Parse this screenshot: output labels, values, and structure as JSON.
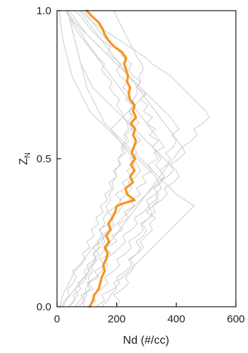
{
  "chart_data": {
    "type": "line",
    "xlabel": "Nd (#/cc)",
    "ylabel": "Z",
    "ylabel_subscript": "N",
    "xlim": [
      0,
      600
    ],
    "ylim": [
      0.0,
      1.0
    ],
    "x_ticks": [
      0,
      200,
      400,
      600
    ],
    "x_tick_labels": [
      "0",
      "200",
      "400",
      "600"
    ],
    "y_ticks": [
      0.0,
      0.5,
      1.0
    ],
    "y_tick_labels": [
      "0.0",
      "0.5",
      "1.0"
    ],
    "grid": false,
    "legend": "none",
    "series": [
      {
        "role": "mean",
        "color": "#f7941d",
        "y": [
          0.0,
          0.02,
          0.04,
          0.06,
          0.08,
          0.1,
          0.12,
          0.14,
          0.16,
          0.18,
          0.2,
          0.22,
          0.24,
          0.26,
          0.28,
          0.3,
          0.32,
          0.34,
          0.35,
          0.36,
          0.38,
          0.4,
          0.42,
          0.44,
          0.46,
          0.48,
          0.5,
          0.52,
          0.54,
          0.56,
          0.58,
          0.6,
          0.62,
          0.64,
          0.66,
          0.68,
          0.7,
          0.72,
          0.74,
          0.76,
          0.78,
          0.8,
          0.82,
          0.84,
          0.86,
          0.88,
          0.9,
          0.92,
          0.94,
          0.96,
          0.98,
          1.0
        ],
        "x": [
          110,
          120,
          125,
          140,
          145,
          150,
          160,
          155,
          165,
          170,
          160,
          175,
          165,
          180,
          172,
          185,
          195,
          200,
          225,
          260,
          235,
          230,
          255,
          245,
          260,
          248,
          262,
          250,
          258,
          265,
          255,
          262,
          248,
          265,
          255,
          260,
          245,
          240,
          245,
          235,
          238,
          232,
          225,
          232,
          218,
          190,
          172,
          160,
          152,
          140,
          118,
          100
        ]
      }
    ],
    "background_series": [
      {
        "color": "#cccccc",
        "y_step": 0.02,
        "x": [
          40,
          60,
          55,
          80,
          70,
          95,
          110,
          100,
          125,
          140,
          120,
          150,
          160,
          140,
          175,
          190,
          170,
          200,
          215,
          195,
          230,
          220,
          250,
          235,
          260,
          245,
          270,
          255,
          280,
          265,
          250,
          275,
          260,
          240,
          255,
          230,
          245,
          220,
          235,
          210,
          200,
          215,
          190,
          170,
          180,
          150,
          130,
          110,
          95,
          80,
          60
        ]
      },
      {
        "color": "#cccccc",
        "y_step": 0.02,
        "x": [
          15,
          25,
          40,
          35,
          55,
          65,
          50,
          80,
          95,
          85,
          110,
          100,
          125,
          115,
          140,
          130,
          155,
          145,
          170,
          160,
          185,
          175,
          200,
          190,
          215,
          205,
          230,
          220,
          240,
          230,
          250,
          240,
          225,
          215,
          200,
          210,
          190,
          175,
          185,
          165,
          150,
          160,
          140,
          125,
          110,
          95,
          85,
          70,
          55,
          45,
          30
        ]
      },
      {
        "color": "#cccccc",
        "y_step": 0.02,
        "x": [
          130,
          160,
          150,
          190,
          210,
          200,
          230,
          250,
          240,
          270,
          290,
          280,
          300,
          320,
          310,
          330,
          300,
          320,
          340,
          330,
          350,
          340,
          360,
          345,
          330,
          350,
          335,
          320,
          340,
          310,
          330,
          300,
          320,
          290,
          305,
          280,
          295,
          270,
          280,
          255,
          240,
          250,
          225,
          210,
          190,
          170,
          150,
          135,
          120,
          105,
          90
        ]
      },
      {
        "color": "#cccccc",
        "y_step": 0.02,
        "x": [
          60,
          75,
          90,
          110,
          100,
          130,
          150,
          170,
          160,
          190,
          210,
          230,
          220,
          250,
          270,
          260,
          290,
          310,
          300,
          330,
          350,
          340,
          370,
          390,
          380,
          410,
          430,
          420,
          450,
          470,
          460,
          490,
          510,
          500,
          480,
          460,
          440,
          420,
          400,
          380,
          350,
          320,
          300,
          270,
          240,
          210,
          180,
          150,
          120,
          100,
          80
        ]
      },
      {
        "color": "#cccccc",
        "y_step": 0.02,
        "x": [
          20,
          30,
          45,
          60,
          75,
          90,
          105,
          120,
          135,
          150,
          165,
          180,
          195,
          210,
          225,
          240,
          255,
          270,
          285,
          300,
          315,
          330,
          345,
          360,
          375,
          390,
          405,
          420,
          405,
          390,
          375,
          360,
          345,
          330,
          315,
          300,
          285,
          270,
          255,
          240,
          225,
          210,
          195,
          180,
          165,
          150,
          135,
          120,
          105,
          90,
          75
        ]
      },
      {
        "color": "#cccccc",
        "y_step": 0.02,
        "x": [
          200,
          210,
          190,
          220,
          240,
          230,
          250,
          260,
          245,
          270,
          280,
          265,
          290,
          300,
          285,
          310,
          320,
          305,
          330,
          340,
          325,
          350,
          360,
          345,
          370,
          380,
          365,
          390,
          400,
          385,
          410,
          395,
          380,
          360,
          340,
          320,
          300,
          280,
          260,
          240,
          220,
          200,
          180,
          160,
          140,
          120,
          100,
          85,
          70,
          55,
          40
        ]
      },
      {
        "color": "#cccccc",
        "y_step": 0.02,
        "x": [
          90,
          85,
          100,
          95,
          110,
          105,
          120,
          115,
          130,
          125,
          140,
          135,
          150,
          145,
          160,
          155,
          170,
          165,
          180,
          175,
          190,
          185,
          200,
          195,
          210,
          205,
          220,
          215,
          230,
          225,
          240,
          235,
          250,
          245,
          260,
          255,
          270,
          265,
          280,
          275,
          290,
          285,
          270,
          260,
          250,
          240,
          230,
          220,
          210,
          200,
          190
        ]
      },
      {
        "color": "#cccccc",
        "y_step": 0.02,
        "x": [
          10,
          15,
          20,
          30,
          40,
          50,
          60,
          75,
          90,
          105,
          120,
          140,
          160,
          180,
          200,
          220,
          240,
          260,
          280,
          300,
          320,
          340,
          330,
          310,
          290,
          270,
          250,
          230,
          210,
          190,
          170,
          150,
          130,
          110,
          100,
          90,
          80,
          70,
          60,
          50,
          45,
          40,
          35,
          30,
          25,
          20,
          18,
          15,
          12,
          10,
          8
        ]
      },
      {
        "color": "#cccccc",
        "y_step": 0.02,
        "x": [
          150,
          170,
          180,
          200,
          190,
          220,
          240,
          260,
          280,
          300,
          320,
          340,
          360,
          380,
          400,
          420,
          440,
          460,
          430,
          400,
          380,
          360,
          340,
          320,
          300,
          280,
          260,
          240,
          220,
          200,
          180,
          160,
          150,
          140,
          130,
          120,
          110,
          100,
          95,
          90,
          85,
          80,
          75,
          70,
          65,
          60,
          55,
          50,
          45,
          40,
          35
        ]
      },
      {
        "color": "#cccccc",
        "y_step": 0.02,
        "x": [
          70,
          95,
          80,
          120,
          105,
          140,
          125,
          160,
          145,
          180,
          165,
          200,
          185,
          220,
          205,
          240,
          225,
          260,
          245,
          280,
          265,
          300,
          285,
          320,
          305,
          340,
          325,
          360,
          345,
          330,
          315,
          300,
          285,
          270,
          255,
          240,
          225,
          210,
          195,
          180,
          165,
          150,
          135,
          120,
          105,
          90,
          75,
          60,
          50,
          40,
          30
        ]
      },
      {
        "color": "#cccccc",
        "y_step": 0.02,
        "x": [
          40,
          55,
          70,
          60,
          85,
          100,
          90,
          115,
          130,
          120,
          145,
          160,
          150,
          175,
          190,
          180,
          205,
          220,
          210,
          235,
          250,
          240,
          265,
          280,
          270,
          255,
          240,
          225,
          210,
          195,
          180,
          200,
          220,
          240,
          260,
          280,
          300,
          280,
          260,
          240,
          220,
          200,
          180,
          160,
          140,
          120,
          100,
          80,
          60,
          45,
          30
        ]
      },
      {
        "color": "#cccccc",
        "y_step": 0.02,
        "x": [
          100,
          130,
          120,
          150,
          170,
          160,
          190,
          210,
          200,
          230,
          250,
          240,
          270,
          290,
          280,
          310,
          330,
          320,
          350,
          370,
          360,
          390,
          410,
          400,
          380,
          360,
          340,
          320,
          300,
          280,
          260,
          240,
          220,
          200,
          180,
          160,
          140,
          120,
          110,
          100,
          90,
          80,
          75,
          70,
          65,
          60,
          55,
          50,
          45,
          40,
          35
        ]
      }
    ]
  }
}
